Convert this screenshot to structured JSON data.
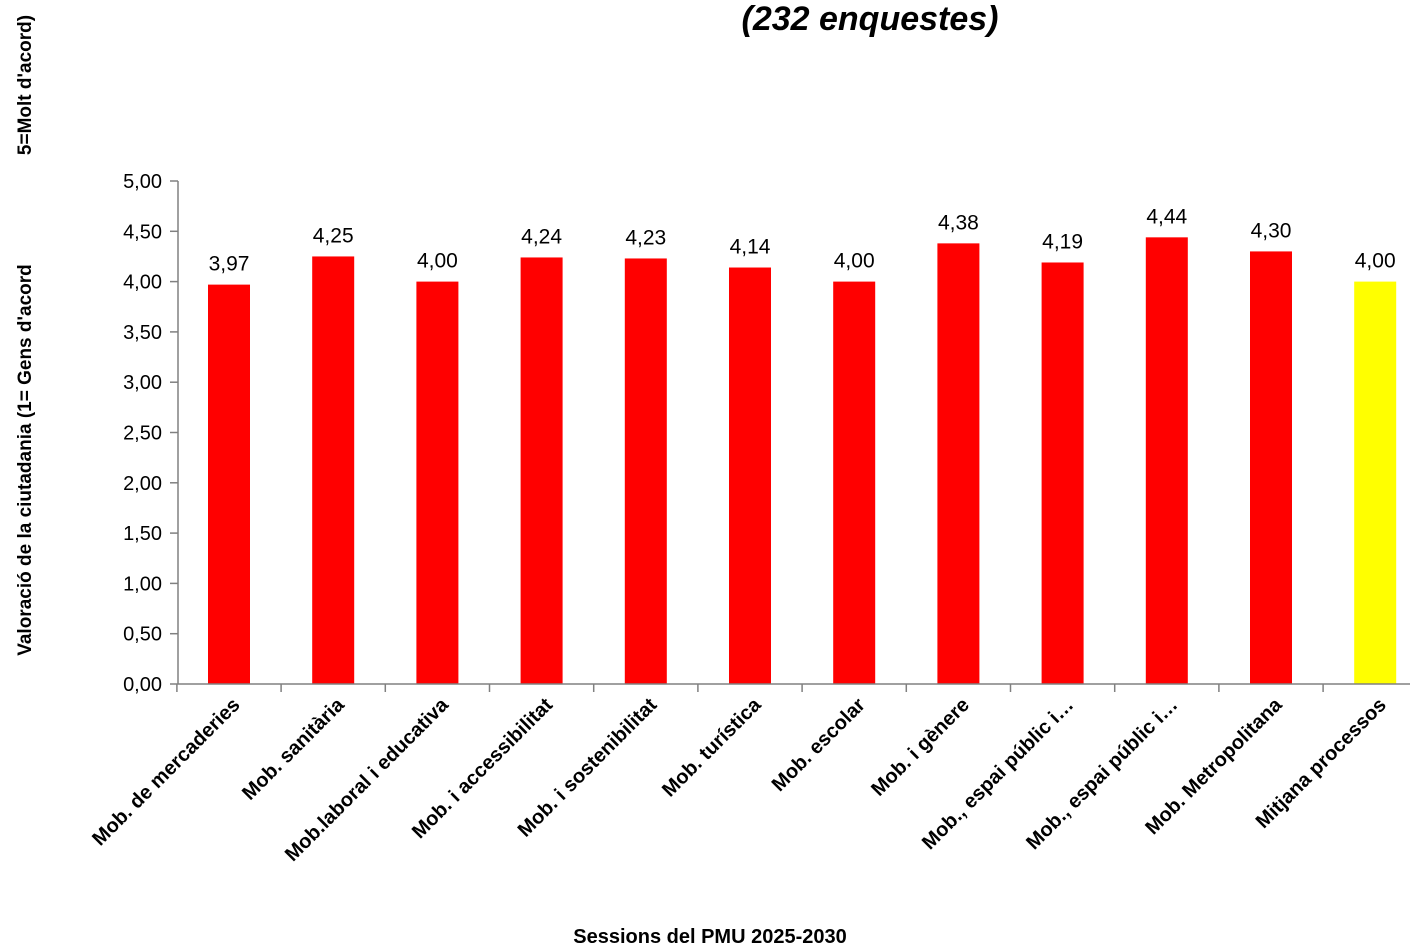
{
  "chart_data": {
    "type": "bar",
    "title": "(232 enquestes)",
    "ylabel_main": "Valoració de la ciutadania (1= Gens d'acord",
    "ylabel_top": "5=Molt d'acord)",
    "xlabel": "Sessions del PMU 2025-2030",
    "ylim": [
      0,
      5
    ],
    "yticks": [
      "0,00",
      "0,50",
      "1,00",
      "1,50",
      "2,00",
      "2,50",
      "3,00",
      "3,50",
      "4,00",
      "4,50",
      "5,00"
    ],
    "categories": [
      "Mob. de mercaderies",
      "Mob. sanitària",
      "Mob.laboral i educativa",
      "Mob. i accessibilitat",
      "Mob. i sostenibilitat",
      "Mob. turística",
      "Mob. escolar",
      "Mob. i gènere",
      "Mob., espai públic i…",
      "Mob., espai públic i…",
      "Mob. Metropolitana",
      "Mitjana processos"
    ],
    "values": [
      3.97,
      4.25,
      4.0,
      4.24,
      4.23,
      4.14,
      4.0,
      4.38,
      4.19,
      4.44,
      4.3,
      4.0
    ],
    "value_labels": [
      "3,97",
      "4,25",
      "4,00",
      "4,24",
      "4,23",
      "4,14",
      "4,00",
      "4,38",
      "4,19",
      "4,44",
      "4,30",
      "4,00"
    ],
    "colors": [
      "#ff0000",
      "#ff0000",
      "#ff0000",
      "#ff0000",
      "#ff0000",
      "#ff0000",
      "#ff0000",
      "#ff0000",
      "#ff0000",
      "#ff0000",
      "#ff0000",
      "#ffff00"
    ],
    "grid": false,
    "legend": "none"
  }
}
